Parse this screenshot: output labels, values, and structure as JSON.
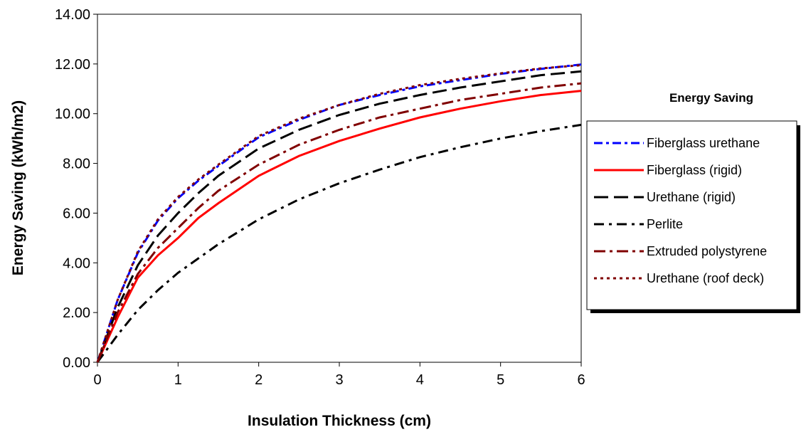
{
  "chart_data": {
    "type": "line",
    "title": "Energy Saving",
    "xlabel": "Insulation Thickness (cm)",
    "ylabel": "Energy Saving (kWh/m2)",
    "xlim": [
      0,
      6
    ],
    "ylim": [
      0,
      14
    ],
    "xticks": [
      "0",
      "1",
      "2",
      "3",
      "4",
      "5",
      "6"
    ],
    "yticks": [
      "0.00",
      "2.00",
      "4.00",
      "6.00",
      "8.00",
      "10.00",
      "12.00",
      "14.00"
    ],
    "grid": false,
    "legend_position": "right",
    "series": [
      {
        "name": "Fiberglass urethane",
        "color": "#0000ff",
        "dash": "12,5,4,5",
        "points": [
          [
            0,
            0
          ],
          [
            0.25,
            2.5
          ],
          [
            0.5,
            4.4
          ],
          [
            0.75,
            5.7
          ],
          [
            1,
            6.6
          ],
          [
            1.25,
            7.3
          ],
          [
            1.5,
            7.9
          ],
          [
            2,
            9.05
          ],
          [
            2.5,
            9.75
          ],
          [
            3,
            10.35
          ],
          [
            3.5,
            10.75
          ],
          [
            4,
            11.1
          ],
          [
            4.5,
            11.35
          ],
          [
            5,
            11.6
          ],
          [
            5.5,
            11.8
          ],
          [
            6,
            11.98
          ]
        ]
      },
      {
        "name": "Fiberglass (rigid)",
        "color": "#ff0000",
        "dash": "",
        "points": [
          [
            0,
            0
          ],
          [
            0.25,
            1.8
          ],
          [
            0.5,
            3.4
          ],
          [
            0.75,
            4.3
          ],
          [
            1,
            5.0
          ],
          [
            1.25,
            5.8
          ],
          [
            1.5,
            6.4
          ],
          [
            2,
            7.5
          ],
          [
            2.5,
            8.3
          ],
          [
            3,
            8.9
          ],
          [
            3.5,
            9.4
          ],
          [
            4,
            9.85
          ],
          [
            4.5,
            10.2
          ],
          [
            5,
            10.5
          ],
          [
            5.5,
            10.75
          ],
          [
            6,
            10.92
          ]
        ]
      },
      {
        "name": "Urethane (rigid)",
        "color": "#000000",
        "dash": "20,8",
        "points": [
          [
            0,
            0
          ],
          [
            0.25,
            2.2
          ],
          [
            0.5,
            3.9
          ],
          [
            0.75,
            5.1
          ],
          [
            1,
            6.0
          ],
          [
            1.25,
            6.8
          ],
          [
            1.5,
            7.5
          ],
          [
            2,
            8.6
          ],
          [
            2.5,
            9.35
          ],
          [
            3,
            9.95
          ],
          [
            3.5,
            10.4
          ],
          [
            4,
            10.75
          ],
          [
            4.5,
            11.05
          ],
          [
            5,
            11.3
          ],
          [
            5.5,
            11.55
          ],
          [
            6,
            11.7
          ]
        ]
      },
      {
        "name": "Perlite",
        "color": "#000000",
        "dash": "14,7,4,7",
        "points": [
          [
            0,
            0
          ],
          [
            0.25,
            1.1
          ],
          [
            0.5,
            2.1
          ],
          [
            0.75,
            2.9
          ],
          [
            1,
            3.6
          ],
          [
            1.5,
            4.75
          ],
          [
            2,
            5.75
          ],
          [
            2.5,
            6.55
          ],
          [
            3,
            7.2
          ],
          [
            3.5,
            7.75
          ],
          [
            4,
            8.25
          ],
          [
            4.5,
            8.65
          ],
          [
            5,
            9.0
          ],
          [
            5.5,
            9.3
          ],
          [
            6,
            9.55
          ]
        ]
      },
      {
        "name": "Extruded polystyrene",
        "color": "#800000",
        "dash": "16,6,4,6",
        "points": [
          [
            0,
            0
          ],
          [
            0.25,
            2.0
          ],
          [
            0.5,
            3.55
          ],
          [
            0.75,
            4.6
          ],
          [
            1,
            5.4
          ],
          [
            1.25,
            6.2
          ],
          [
            1.5,
            6.9
          ],
          [
            2,
            7.95
          ],
          [
            2.5,
            8.75
          ],
          [
            3,
            9.35
          ],
          [
            3.5,
            9.85
          ],
          [
            4,
            10.2
          ],
          [
            4.5,
            10.55
          ],
          [
            5,
            10.8
          ],
          [
            5.5,
            11.05
          ],
          [
            6,
            11.22
          ]
        ]
      },
      {
        "name": "Urethane (roof deck)",
        "color": "#800000",
        "dash": "4,5",
        "points": [
          [
            0,
            0
          ],
          [
            0.25,
            2.5
          ],
          [
            0.5,
            4.45
          ],
          [
            0.75,
            5.75
          ],
          [
            1,
            6.65
          ],
          [
            1.25,
            7.35
          ],
          [
            1.5,
            7.95
          ],
          [
            2,
            9.1
          ],
          [
            2.5,
            9.8
          ],
          [
            3,
            10.35
          ],
          [
            3.5,
            10.8
          ],
          [
            4,
            11.15
          ],
          [
            4.5,
            11.4
          ],
          [
            5,
            11.62
          ],
          [
            5.5,
            11.82
          ],
          [
            6,
            11.95
          ]
        ]
      }
    ]
  }
}
